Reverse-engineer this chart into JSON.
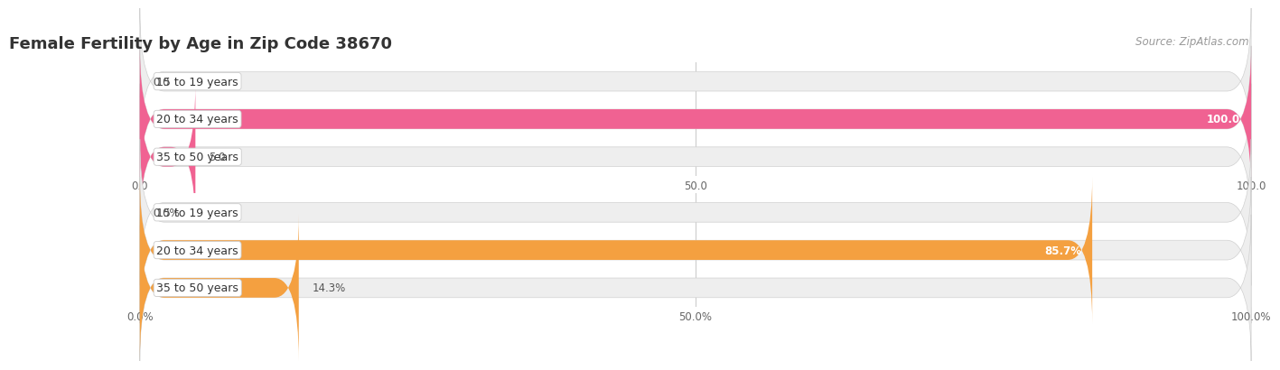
{
  "title": "Female Fertility by Age in Zip Code 38670",
  "source": "Source: ZipAtlas.com",
  "chart1": {
    "categories": [
      "15 to 19 years",
      "20 to 34 years",
      "35 to 50 years"
    ],
    "values": [
      0.0,
      100.0,
      5.0
    ],
    "xlim": [
      0,
      100
    ],
    "xticks": [
      0.0,
      50.0,
      100.0
    ],
    "xtick_labels": [
      "0.0",
      "50.0",
      "100.0"
    ],
    "bar_color": "#F06292",
    "bar_bg_color": "#EEEEEE",
    "value_labels": [
      "0.0",
      "100.0",
      "5.0"
    ],
    "inside_threshold": 90
  },
  "chart2": {
    "categories": [
      "15 to 19 years",
      "20 to 34 years",
      "35 to 50 years"
    ],
    "values": [
      0.0,
      85.7,
      14.3
    ],
    "xlim": [
      0,
      100
    ],
    "xticks": [
      0.0,
      50.0,
      100.0
    ],
    "xtick_labels": [
      "0.0%",
      "50.0%",
      "100.0%"
    ],
    "bar_color": "#F4A040",
    "bar_bg_color": "#EEEEEE",
    "value_labels": [
      "0.0%",
      "85.7%",
      "14.3%"
    ],
    "inside_threshold": 80
  },
  "title_fontsize": 13,
  "source_fontsize": 8.5,
  "tick_fontsize": 8.5,
  "bar_label_fontsize": 8.5,
  "category_fontsize": 9,
  "bar_height": 0.52,
  "fig_bg": "#ffffff",
  "grid_color": "#cccccc"
}
